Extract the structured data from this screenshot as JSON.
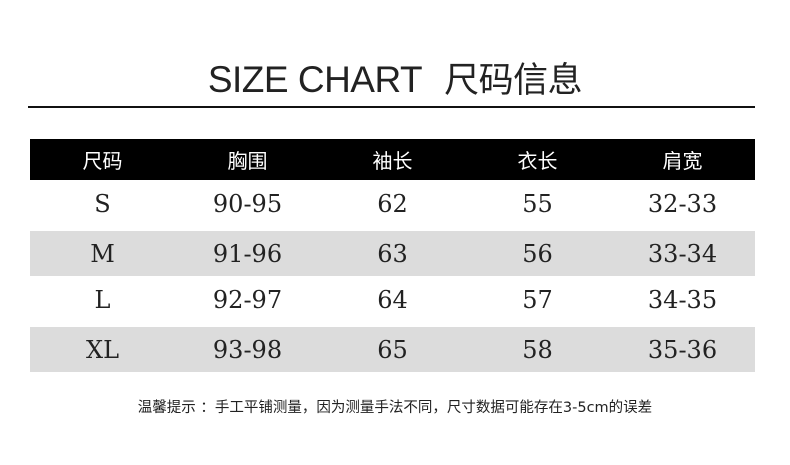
{
  "title": {
    "en": "SIZE CHART",
    "zh": "尺码信息"
  },
  "table": {
    "headers": [
      "尺码",
      "胸围",
      "袖长",
      "衣长",
      "肩宽"
    ],
    "rows": [
      [
        "S",
        "90-95",
        "62",
        "55",
        "32-33"
      ],
      [
        "M",
        "91-96",
        "63",
        "56",
        "33-34"
      ],
      [
        "L",
        "92-97",
        "64",
        "57",
        "34-35"
      ],
      [
        "XL",
        "93-98",
        "65",
        "58",
        "35-36"
      ]
    ],
    "colors": {
      "header_bg": "#000000",
      "header_text": "#ffffff",
      "stripe": "#dcdcdc"
    }
  },
  "note": "温馨提示 ：手工平铺测量，因为测量手法不同，尺寸数据可能存在3-5cm的误差"
}
